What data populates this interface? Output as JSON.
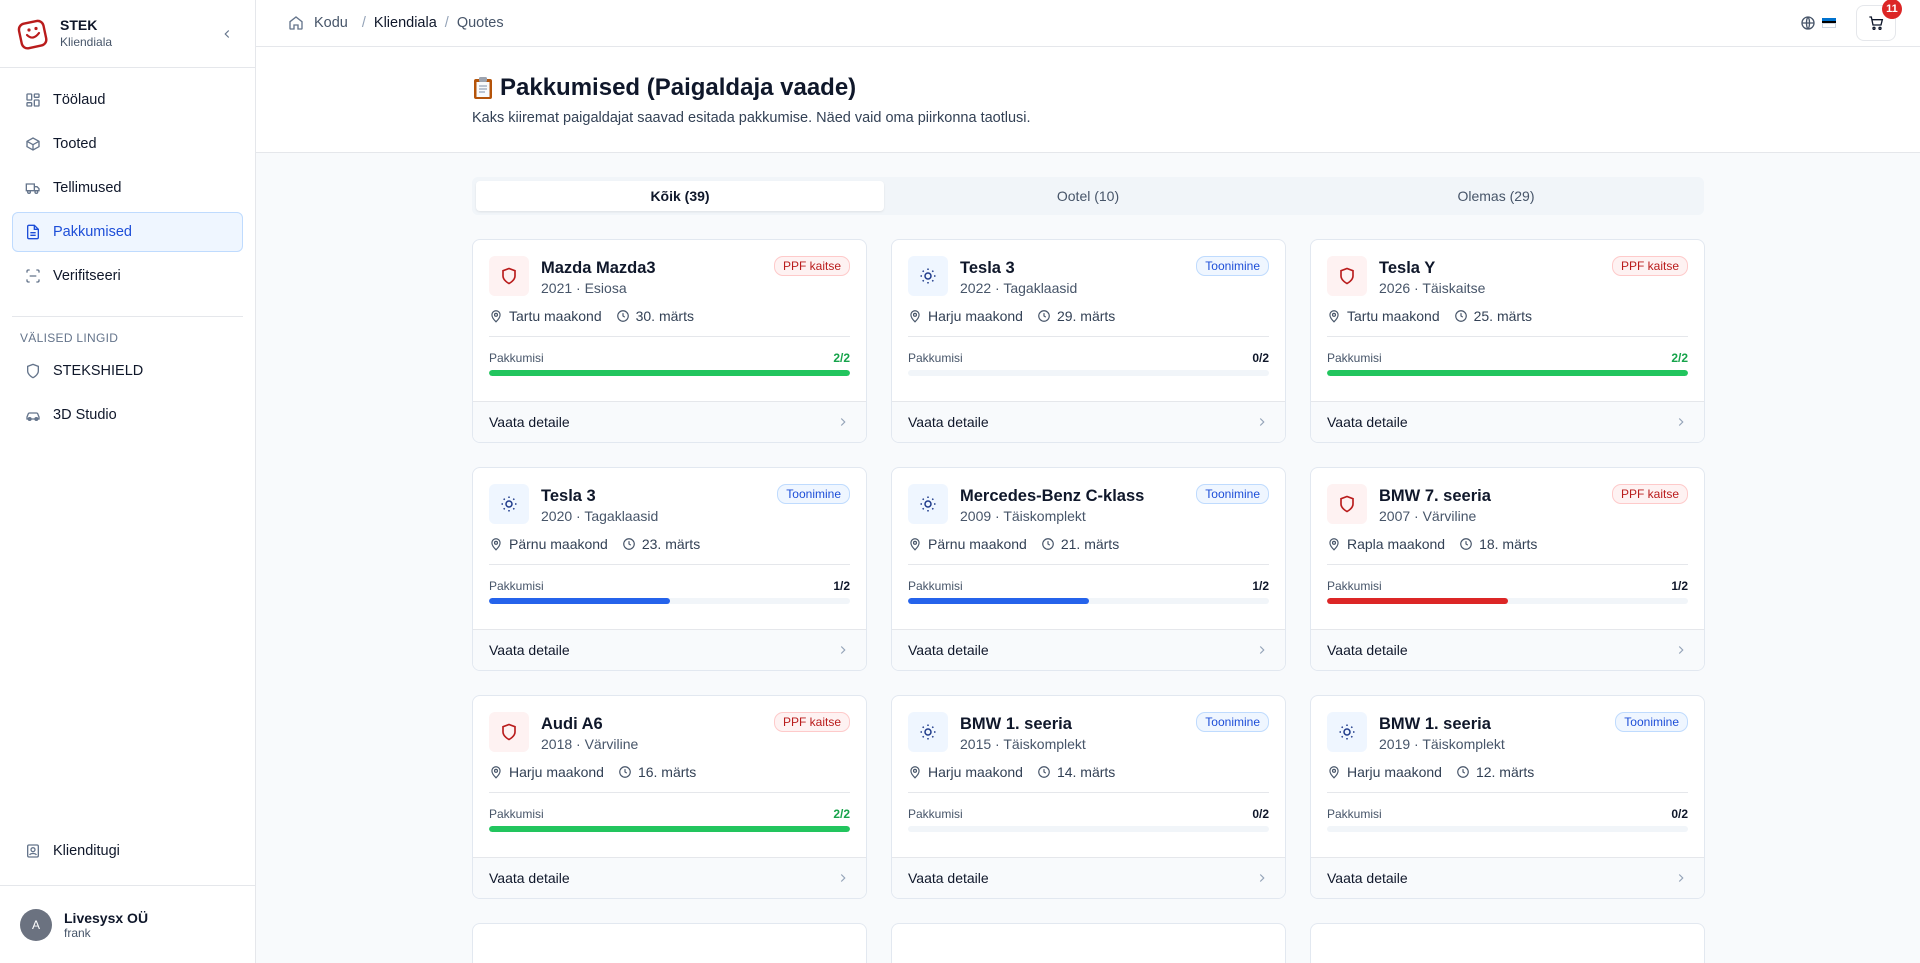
{
  "sidebar": {
    "brand_name": "STEK",
    "brand_sub": "Kliendiala",
    "nav": [
      {
        "label": "Töölaud",
        "icon": "dashboard-icon",
        "active": false
      },
      {
        "label": "Tooted",
        "icon": "box-icon",
        "active": false
      },
      {
        "label": "Tellimused",
        "icon": "truck-icon",
        "active": false
      },
      {
        "label": "Pakkumised",
        "icon": "document-icon",
        "active": true
      },
      {
        "label": "Verifitseeri",
        "icon": "scan-icon",
        "active": false
      }
    ],
    "external_title": "VÄLISED LINGID",
    "external": [
      {
        "label": "STEKSHIELD",
        "icon": "shield-icon"
      },
      {
        "label": "3D Studio",
        "icon": "car-icon"
      }
    ],
    "support_label": "Klienditugi",
    "user": {
      "initial": "A",
      "name": "Livesysx OÜ",
      "sub": "frank"
    }
  },
  "topbar": {
    "breadcrumbs": [
      "Kodu",
      "Kliendiala",
      "Quotes"
    ],
    "cart_count": "11",
    "flag_colors": [
      "#0072ce",
      "#000000",
      "#ffffff"
    ]
  },
  "page": {
    "title": "Pakkumised (Paigaldaja vaade)",
    "description": "Kaks kiiremat paigaldajat saavad esitada pakkumise. Näed vaid oma piirkonna taotlusi."
  },
  "tabs": [
    {
      "label": "Kõik (39)",
      "active": true
    },
    {
      "label": "Ootel (10)",
      "active": false
    },
    {
      "label": "Olemas (29)",
      "active": false
    }
  ],
  "card_labels": {
    "progress_label": "Pakkumisi",
    "details_label": "Vaata detaile"
  },
  "colors": {
    "green": "#22c55e",
    "blue": "#2563eb",
    "red": "#dc2626"
  },
  "cards": [
    {
      "name": "Mazda Mazda3",
      "sub": "2021 · Esiosa",
      "tag": "PPF kaitse",
      "type": "ppf",
      "region": "Tartu maakond",
      "date": "30. märts",
      "count": "2/2",
      "fraction": 1,
      "color": "green"
    },
    {
      "name": "Tesla 3",
      "sub": "2022 · Tagaklaasid",
      "tag": "Toonimine",
      "type": "toon",
      "region": "Harju maakond",
      "date": "29. märts",
      "count": "0/2",
      "fraction": 0,
      "color": "blue"
    },
    {
      "name": "Tesla Y",
      "sub": "2026 · Täiskaitse",
      "tag": "PPF kaitse",
      "type": "ppf",
      "region": "Tartu maakond",
      "date": "25. märts",
      "count": "2/2",
      "fraction": 1,
      "color": "green"
    },
    {
      "name": "Tesla 3",
      "sub": "2020 · Tagaklaasid",
      "tag": "Toonimine",
      "type": "toon",
      "region": "Pärnu maakond",
      "date": "23. märts",
      "count": "1/2",
      "fraction": 0.5,
      "color": "blue"
    },
    {
      "name": "Mercedes-Benz C-klass",
      "sub": "2009 · Täiskomplekt",
      "tag": "Toonimine",
      "type": "toon",
      "region": "Pärnu maakond",
      "date": "21. märts",
      "count": "1/2",
      "fraction": 0.5,
      "color": "blue"
    },
    {
      "name": "BMW 7. seeria",
      "sub": "2007 · Värviline",
      "tag": "PPF kaitse",
      "type": "ppf",
      "region": "Rapla maakond",
      "date": "18. märts",
      "count": "1/2",
      "fraction": 0.5,
      "color": "red"
    },
    {
      "name": "Audi A6",
      "sub": "2018 · Värviline",
      "tag": "PPF kaitse",
      "type": "ppf",
      "region": "Harju maakond",
      "date": "16. märts",
      "count": "2/2",
      "fraction": 1,
      "color": "green"
    },
    {
      "name": "BMW 1. seeria",
      "sub": "2015 · Täiskomplekt",
      "tag": "Toonimine",
      "type": "toon",
      "region": "Harju maakond",
      "date": "14. märts",
      "count": "0/2",
      "fraction": 0,
      "color": "blue"
    },
    {
      "name": "BMW 1. seeria",
      "sub": "2019 · Täiskomplekt",
      "tag": "Toonimine",
      "type": "toon",
      "region": "Harju maakond",
      "date": "12. märts",
      "count": "0/2",
      "fraction": 0,
      "color": "blue"
    }
  ]
}
